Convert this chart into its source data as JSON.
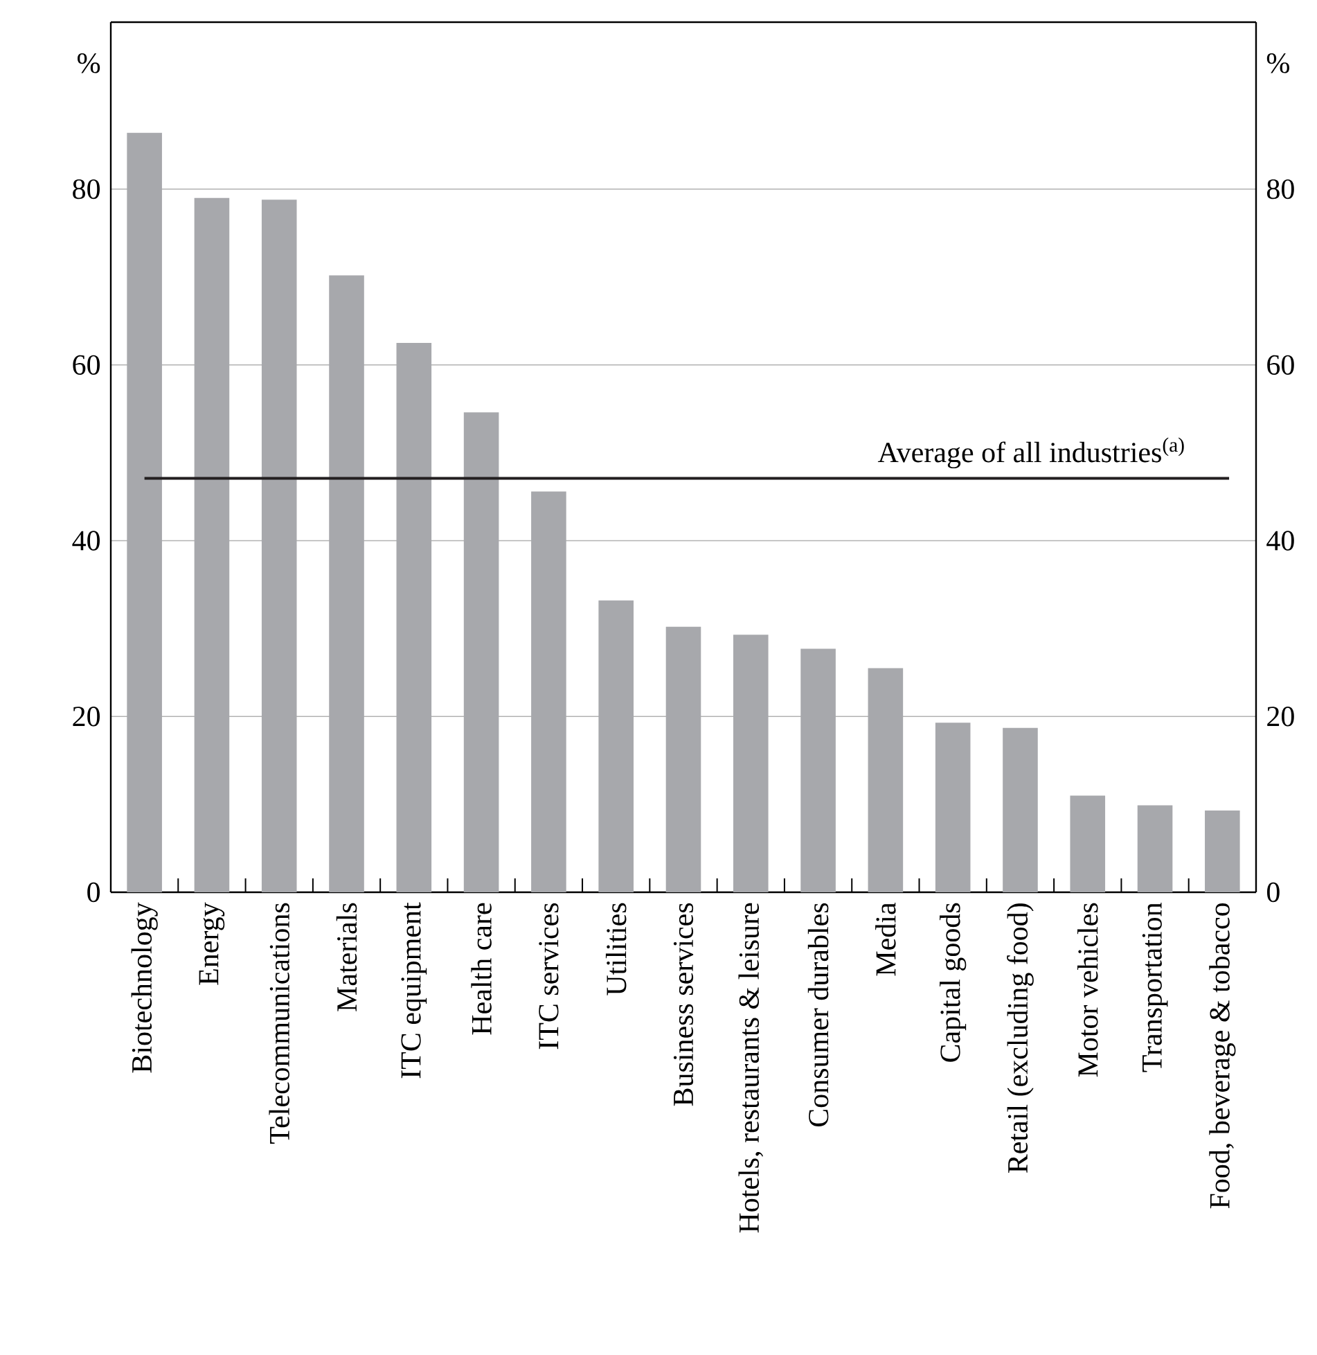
{
  "chart_data": {
    "type": "bar",
    "categories": [
      "Biotechnology",
      "Energy",
      "Telecommunications",
      "Materials",
      "ITC equipment",
      "Health care",
      "ITC services",
      "Utilities",
      "Business services",
      "Hotels, restaurants & leisure",
      "Consumer durables",
      "Media",
      "Capital goods",
      "Retail (excluding food)",
      "Motor vehicles",
      "Transportation",
      "Food, beverage & tobacco"
    ],
    "values": [
      86.4,
      79.0,
      78.8,
      70.2,
      62.5,
      54.6,
      45.6,
      33.2,
      30.2,
      29.3,
      27.7,
      25.5,
      19.3,
      18.7,
      11.0,
      9.9,
      9.3
    ],
    "color": "#a7a8ac",
    "ylabel": "%",
    "y2label": "%",
    "ylim": [
      0,
      99
    ],
    "yticks": [
      0,
      20,
      40,
      60,
      80
    ],
    "y2lim": [
      0,
      99
    ],
    "y2ticks": [
      0,
      20,
      40,
      60,
      80
    ],
    "grid": "y",
    "ref_lines": [
      {
        "axis": "y",
        "value": 47.1,
        "label": "Average of all industries$^{(a)}$",
        "color": "#231f20"
      }
    ]
  }
}
